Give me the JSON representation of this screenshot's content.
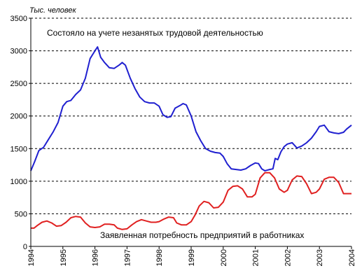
{
  "chart_data": {
    "type": "line",
    "title": "",
    "ylabel": "Тыс. человек",
    "xlabel": "",
    "ylim": [
      0,
      3500
    ],
    "xlim": [
      1994,
      2004
    ],
    "y_ticks": [
      0,
      500,
      1000,
      1500,
      2000,
      2500,
      3000,
      3500
    ],
    "x_ticks": [
      1994,
      1995,
      1996,
      1997,
      1998,
      1999,
      2000,
      2001,
      2002,
      2003,
      2004
    ],
    "grid": "horizontal-dashed",
    "colors": {
      "registered": "#2020d0",
      "demand": "#e02020",
      "grid": "#000000",
      "axis": "#000000"
    },
    "series": [
      {
        "name": "Состояло на учете незанятых трудовой деятельностью",
        "color": "#2020d0",
        "points": [
          [
            1994.0,
            1160
          ],
          [
            1994.12,
            1300
          ],
          [
            1994.25,
            1470
          ],
          [
            1994.4,
            1520
          ],
          [
            1994.55,
            1640
          ],
          [
            1994.7,
            1760
          ],
          [
            1994.85,
            1900
          ],
          [
            1995.0,
            2150
          ],
          [
            1995.12,
            2220
          ],
          [
            1995.25,
            2240
          ],
          [
            1995.4,
            2330
          ],
          [
            1995.55,
            2400
          ],
          [
            1995.7,
            2580
          ],
          [
            1995.85,
            2880
          ],
          [
            1996.0,
            3000
          ],
          [
            1996.08,
            3060
          ],
          [
            1996.18,
            2900
          ],
          [
            1996.3,
            2820
          ],
          [
            1996.45,
            2740
          ],
          [
            1996.6,
            2730
          ],
          [
            1996.75,
            2780
          ],
          [
            1996.85,
            2820
          ],
          [
            1996.95,
            2780
          ],
          [
            1997.1,
            2580
          ],
          [
            1997.25,
            2420
          ],
          [
            1997.4,
            2290
          ],
          [
            1997.55,
            2220
          ],
          [
            1997.7,
            2200
          ],
          [
            1997.85,
            2200
          ],
          [
            1998.0,
            2150
          ],
          [
            1998.12,
            2020
          ],
          [
            1998.25,
            1980
          ],
          [
            1998.37,
            1990
          ],
          [
            1998.5,
            2120
          ],
          [
            1998.65,
            2160
          ],
          [
            1998.75,
            2190
          ],
          [
            1998.85,
            2170
          ],
          [
            1999.0,
            2000
          ],
          [
            1999.15,
            1760
          ],
          [
            1999.3,
            1620
          ],
          [
            1999.45,
            1500
          ],
          [
            1999.6,
            1460
          ],
          [
            1999.75,
            1440
          ],
          [
            1999.9,
            1430
          ],
          [
            2000.0,
            1380
          ],
          [
            2000.12,
            1270
          ],
          [
            2000.25,
            1190
          ],
          [
            2000.4,
            1180
          ],
          [
            2000.55,
            1170
          ],
          [
            2000.7,
            1190
          ],
          [
            2000.85,
            1240
          ],
          [
            2001.0,
            1280
          ],
          [
            2001.1,
            1270
          ],
          [
            2001.2,
            1190
          ],
          [
            2001.3,
            1160
          ],
          [
            2001.45,
            1180
          ],
          [
            2001.55,
            1190
          ],
          [
            2001.62,
            1350
          ],
          [
            2001.7,
            1330
          ],
          [
            2001.8,
            1450
          ],
          [
            2001.9,
            1530
          ],
          [
            2002.0,
            1570
          ],
          [
            2002.15,
            1590
          ],
          [
            2002.3,
            1510
          ],
          [
            2002.45,
            1540
          ],
          [
            2002.6,
            1590
          ],
          [
            2002.75,
            1660
          ],
          [
            2002.9,
            1760
          ],
          [
            2003.0,
            1840
          ],
          [
            2003.15,
            1860
          ],
          [
            2003.3,
            1760
          ],
          [
            2003.45,
            1740
          ],
          [
            2003.6,
            1730
          ],
          [
            2003.75,
            1750
          ],
          [
            2003.85,
            1800
          ],
          [
            2004.0,
            1860
          ]
        ]
      },
      {
        "name": "Заявленная потребность предприятий в работниках",
        "color": "#e02020",
        "points": [
          [
            1994.0,
            280
          ],
          [
            1994.1,
            280
          ],
          [
            1994.2,
            320
          ],
          [
            1994.35,
            370
          ],
          [
            1994.5,
            390
          ],
          [
            1994.65,
            360
          ],
          [
            1994.8,
            310
          ],
          [
            1994.95,
            320
          ],
          [
            1995.1,
            370
          ],
          [
            1995.25,
            440
          ],
          [
            1995.4,
            460
          ],
          [
            1995.55,
            450
          ],
          [
            1995.7,
            360
          ],
          [
            1995.85,
            300
          ],
          [
            1996.0,
            290
          ],
          [
            1996.15,
            300
          ],
          [
            1996.3,
            340
          ],
          [
            1996.45,
            340
          ],
          [
            1996.6,
            330
          ],
          [
            1996.7,
            280
          ],
          [
            1996.85,
            260
          ],
          [
            1997.0,
            270
          ],
          [
            1997.15,
            330
          ],
          [
            1997.3,
            380
          ],
          [
            1997.45,
            410
          ],
          [
            1997.6,
            390
          ],
          [
            1997.75,
            370
          ],
          [
            1997.9,
            370
          ],
          [
            1998.0,
            380
          ],
          [
            1998.15,
            420
          ],
          [
            1998.3,
            450
          ],
          [
            1998.45,
            440
          ],
          [
            1998.55,
            360
          ],
          [
            1998.7,
            330
          ],
          [
            1998.85,
            330
          ],
          [
            1999.0,
            380
          ],
          [
            1999.12,
            480
          ],
          [
            1999.25,
            620
          ],
          [
            1999.4,
            690
          ],
          [
            1999.55,
            670
          ],
          [
            1999.7,
            590
          ],
          [
            1999.85,
            600
          ],
          [
            2000.0,
            680
          ],
          [
            2000.15,
            860
          ],
          [
            2000.3,
            920
          ],
          [
            2000.45,
            930
          ],
          [
            2000.6,
            880
          ],
          [
            2000.75,
            760
          ],
          [
            2000.9,
            760
          ],
          [
            2001.0,
            800
          ],
          [
            2001.15,
            1050
          ],
          [
            2001.3,
            1130
          ],
          [
            2001.45,
            1130
          ],
          [
            2001.6,
            1050
          ],
          [
            2001.75,
            880
          ],
          [
            2001.9,
            830
          ],
          [
            2002.0,
            860
          ],
          [
            2002.15,
            1020
          ],
          [
            2002.3,
            1080
          ],
          [
            2002.45,
            1070
          ],
          [
            2002.6,
            960
          ],
          [
            2002.75,
            810
          ],
          [
            2002.9,
            830
          ],
          [
            2003.0,
            880
          ],
          [
            2003.15,
            1030
          ],
          [
            2003.3,
            1060
          ],
          [
            2003.45,
            1060
          ],
          [
            2003.6,
            980
          ],
          [
            2003.75,
            810
          ],
          [
            2004.0,
            810
          ]
        ]
      }
    ],
    "annotations": [
      {
        "text": "Состояло на учете незанятых трудовой деятельностью",
        "series": "registered"
      },
      {
        "text": "Заявленная потребность предприятий в работниках",
        "series": "demand"
      }
    ]
  }
}
